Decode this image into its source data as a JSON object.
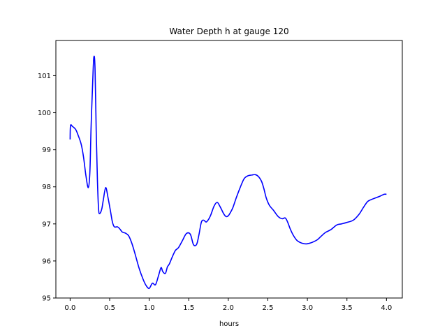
{
  "chart_data": {
    "type": "line",
    "title": "Water Depth h at gauge 120",
    "xlabel": "hours",
    "ylabel": "",
    "xlim": [
      -0.18,
      4.2
    ],
    "ylim": [
      95.0,
      101.95
    ],
    "xticks": [
      0.0,
      0.5,
      1.0,
      1.5,
      2.0,
      2.5,
      3.0,
      3.5,
      4.0
    ],
    "xtick_labels": [
      "0.0",
      "0.5",
      "1.0",
      "1.5",
      "2.0",
      "2.5",
      "3.0",
      "3.5",
      "4.0"
    ],
    "yticks": [
      95,
      96,
      97,
      98,
      99,
      100,
      101
    ],
    "ytick_labels": [
      "95",
      "96",
      "97",
      "98",
      "99",
      "100",
      "101"
    ],
    "grid": false,
    "series": [
      {
        "color": "#0000ff",
        "x": [
          0.0,
          0.005,
          0.03,
          0.07,
          0.1,
          0.14,
          0.17,
          0.2,
          0.23,
          0.25,
          0.265,
          0.285,
          0.3,
          0.315,
          0.33,
          0.345,
          0.36,
          0.375,
          0.4,
          0.42,
          0.45,
          0.48,
          0.51,
          0.535,
          0.56,
          0.6,
          0.63,
          0.66,
          0.7,
          0.74,
          0.78,
          0.82,
          0.87,
          0.92,
          0.96,
          1.0,
          1.04,
          1.08,
          1.12,
          1.15,
          1.17,
          1.2,
          1.215,
          1.23,
          1.255,
          1.29,
          1.33,
          1.37,
          1.42,
          1.47,
          1.52,
          1.56,
          1.6,
          1.63,
          1.66,
          1.69,
          1.72,
          1.75,
          1.78,
          1.82,
          1.86,
          1.9,
          1.94,
          1.97,
          2.0,
          2.03,
          2.06,
          2.1,
          2.15,
          2.2,
          2.25,
          2.3,
          2.34,
          2.38,
          2.42,
          2.45,
          2.48,
          2.52,
          2.57,
          2.63,
          2.68,
          2.72,
          2.75,
          2.78,
          2.82,
          2.87,
          2.93,
          2.98,
          3.03,
          3.08,
          3.13,
          3.18,
          3.23,
          3.3,
          3.37,
          3.43,
          3.5,
          3.58,
          3.65,
          3.71,
          3.76,
          3.8,
          3.86,
          3.92,
          3.97,
          4.0
        ],
        "y": [
          99.28,
          99.65,
          99.63,
          99.55,
          99.4,
          99.15,
          98.8,
          98.3,
          97.98,
          98.4,
          99.6,
          100.8,
          101.5,
          101.2,
          99.5,
          98.2,
          97.4,
          97.28,
          97.4,
          97.65,
          97.98,
          97.7,
          97.35,
          97.05,
          96.92,
          96.92,
          96.86,
          96.78,
          96.75,
          96.68,
          96.48,
          96.2,
          95.82,
          95.52,
          95.34,
          95.26,
          95.4,
          95.36,
          95.62,
          95.82,
          95.72,
          95.66,
          95.72,
          95.84,
          95.92,
          96.1,
          96.28,
          96.36,
          96.55,
          96.74,
          96.72,
          96.44,
          96.45,
          96.72,
          97.05,
          97.1,
          97.05,
          97.12,
          97.25,
          97.48,
          97.58,
          97.45,
          97.28,
          97.2,
          97.22,
          97.32,
          97.45,
          97.7,
          97.98,
          98.22,
          98.3,
          98.32,
          98.33,
          98.28,
          98.15,
          97.95,
          97.7,
          97.5,
          97.37,
          97.2,
          97.14,
          97.16,
          97.05,
          96.88,
          96.7,
          96.55,
          96.48,
          96.46,
          96.48,
          96.52,
          96.58,
          96.68,
          96.77,
          96.85,
          96.97,
          97.0,
          97.04,
          97.1,
          97.25,
          97.45,
          97.6,
          97.65,
          97.7,
          97.75,
          97.8,
          97.8
        ]
      }
    ]
  }
}
